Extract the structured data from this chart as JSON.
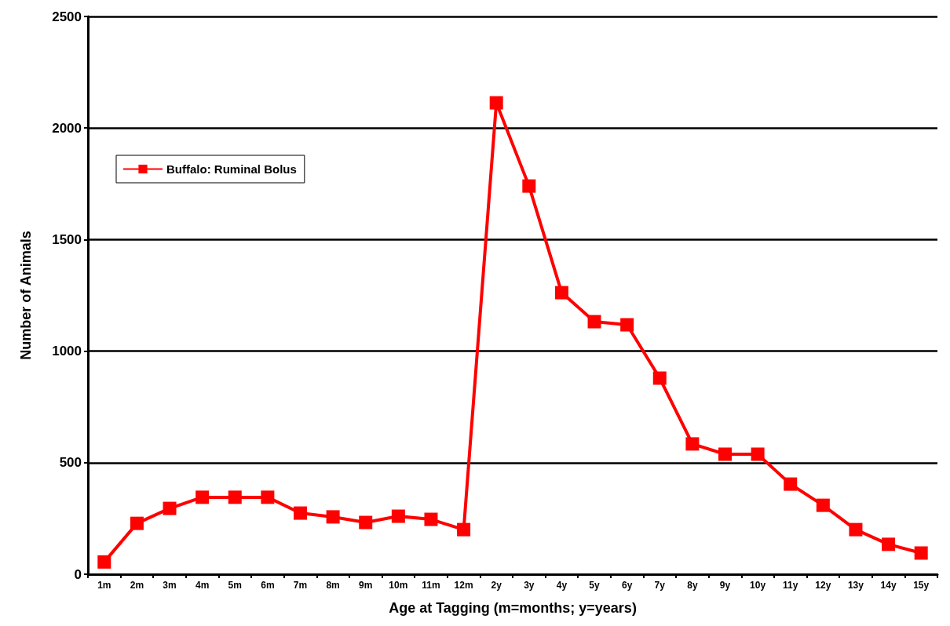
{
  "chart_data": {
    "type": "line",
    "xlabel": "Age at Tagging (m=months; y=years)",
    "ylabel": "Number of Animals",
    "categories": [
      "1m",
      "2m",
      "3m",
      "4m",
      "5m",
      "6m",
      "7m",
      "8m",
      "9m",
      "10m",
      "11m",
      "12m",
      "2y",
      "3y",
      "4y",
      "5y",
      "6y",
      "7y",
      "8y",
      "9y",
      "10y",
      "11y",
      "12y",
      "13y",
      "14y",
      "15y"
    ],
    "series": [
      {
        "name": "Buffalo: Ruminal Bolus",
        "color": "#ff0000",
        "values": [
          55,
          228,
          295,
          345,
          345,
          345,
          274,
          257,
          232,
          260,
          246,
          200,
          2113,
          1740,
          1262,
          1132,
          1118,
          879,
          584,
          538,
          538,
          404,
          309,
          200,
          134,
          95
        ]
      }
    ],
    "ylim": [
      0,
      2500
    ],
    "yticks": [
      0,
      500,
      1000,
      1500,
      2000,
      2500
    ],
    "grid": "y",
    "legend": "top left",
    "marker": "square",
    "line_style": "solid"
  }
}
